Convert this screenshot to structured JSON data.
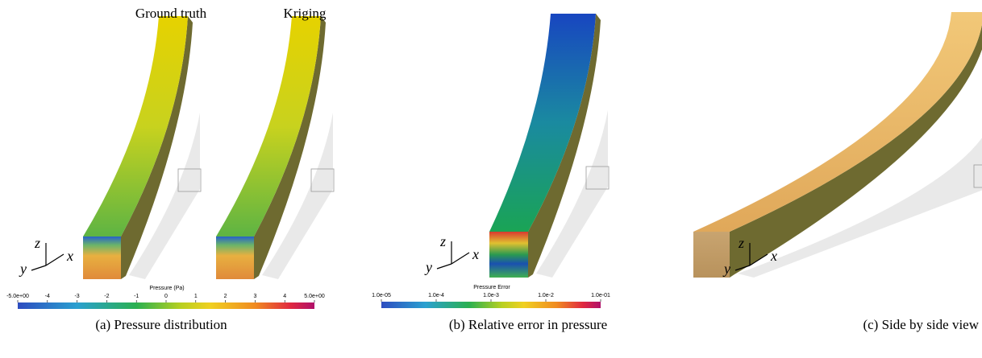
{
  "panels": [
    {
      "labels": [
        "Ground truth",
        "Kriging"
      ],
      "axes": [
        "z",
        "y",
        "x"
      ],
      "colorbar": {
        "title": "Pressure (Pa)",
        "ticks": [
          "-5.0e+00",
          "-4",
          "-3",
          "-2",
          "-1",
          "0",
          "1",
          "2",
          "3",
          "4",
          "5.0e+00"
        ]
      },
      "caption": "(a) Pressure distribution"
    },
    {
      "axes": [
        "z",
        "y",
        "x"
      ],
      "colorbar": {
        "title": "Pressure Error",
        "ticks": [
          "1.0e-05",
          "1.0e-4",
          "1.0e-3",
          "1.0e-2",
          "1.0e-01"
        ]
      },
      "caption": "(b) Relative error in pressure"
    },
    {
      "axes": [
        "z",
        "y",
        "x"
      ],
      "caption": "(c) Side by side view"
    }
  ]
}
